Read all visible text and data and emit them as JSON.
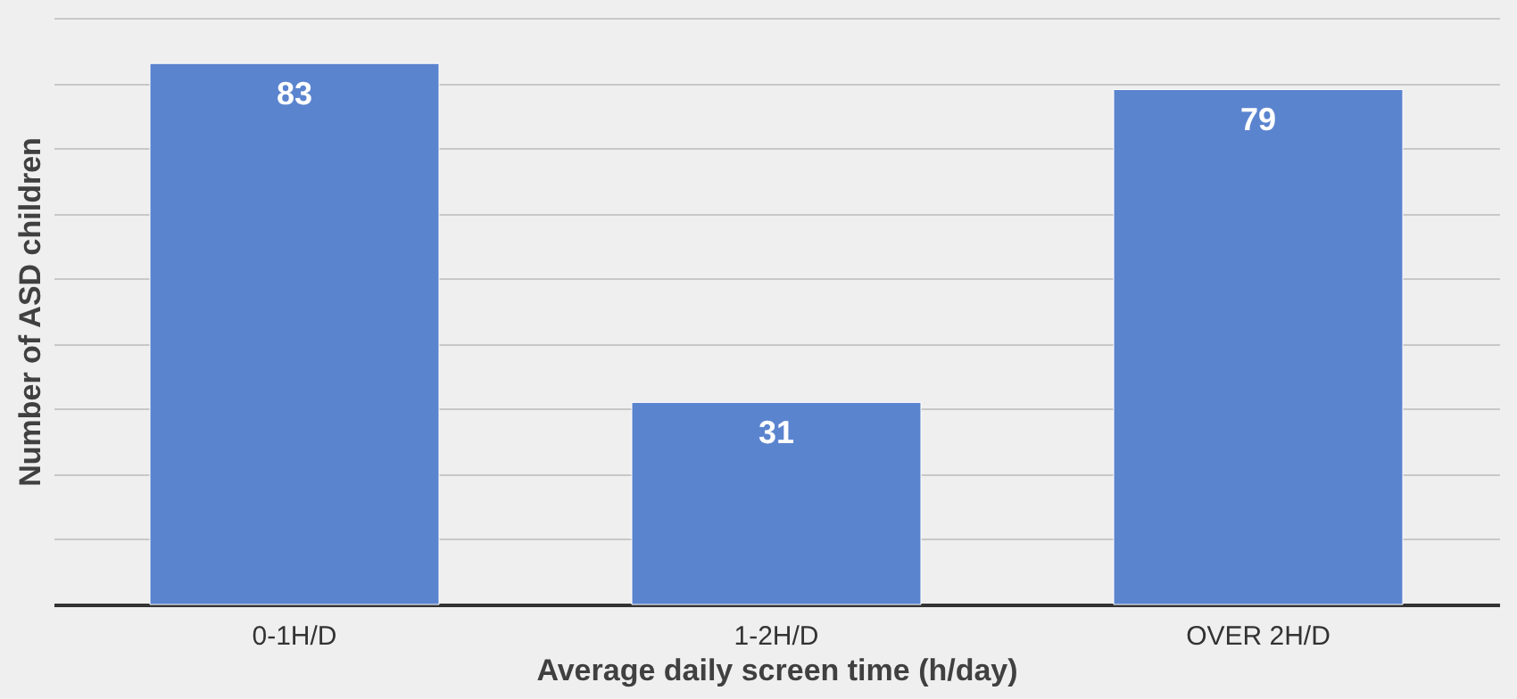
{
  "chart_data": {
    "type": "bar",
    "xlabel": "Average daily screen time (h/day)",
    "ylabel": "Number of ASD children",
    "categories": [
      "0-1H/D",
      "1-2H/D",
      "OVER 2H/D"
    ],
    "values": [
      83,
      31,
      79
    ],
    "color": "#5b84cf",
    "ylim": [
      0,
      90
    ],
    "yticks": [
      {
        "value": 0,
        "label": null
      },
      {
        "value": 10,
        "label": null
      },
      {
        "value": 20,
        "label": null
      },
      {
        "value": 30,
        "label": null
      },
      {
        "value": 40,
        "label": null
      },
      {
        "value": 50,
        "label": null
      },
      {
        "value": 60,
        "label": null
      },
      {
        "value": 70,
        "label": null
      },
      {
        "value": 80,
        "label": null
      },
      {
        "value": 90,
        "label": null
      }
    ],
    "grid": "y",
    "tick_labels": "x",
    "data_labels": true
  }
}
